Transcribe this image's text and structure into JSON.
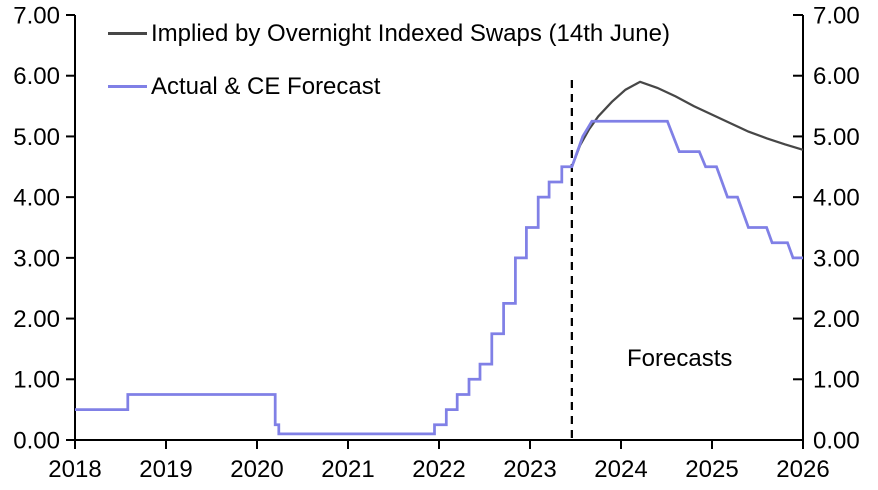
{
  "chart_data": {
    "type": "line",
    "title": "",
    "xlabel": "",
    "ylabel": "",
    "x_axis": {
      "range": [
        2018,
        2026
      ],
      "ticks": [
        2018,
        2019,
        2020,
        2021,
        2022,
        2023,
        2024,
        2025,
        2026
      ],
      "tick_labels": [
        "2018",
        "2019",
        "2020",
        "2021",
        "2022",
        "2023",
        "2024",
        "2025",
        "2026"
      ]
    },
    "y_axis": {
      "range": [
        0,
        7
      ],
      "ticks": [
        0,
        1,
        2,
        3,
        4,
        5,
        6,
        7
      ],
      "tick_labels": [
        "0.00",
        "1.00",
        "2.00",
        "3.00",
        "4.00",
        "5.00",
        "6.00",
        "7.00"
      ],
      "dual_axis": true,
      "grid": false
    },
    "annotations": {
      "forecast_label": "Forecasts",
      "forecast_divider_x": 2023.46,
      "forecast_divider_style": "dashed-black"
    },
    "series": [
      {
        "id": "ois-implied",
        "name": "Implied by Overnight Indexed Swaps (14th June)",
        "color": "#474747",
        "stroke_width": 2.25,
        "points": [
          [
            2023.46,
            4.5
          ],
          [
            2023.55,
            4.85
          ],
          [
            2023.65,
            5.12
          ],
          [
            2023.75,
            5.33
          ],
          [
            2023.9,
            5.57
          ],
          [
            2024.05,
            5.77
          ],
          [
            2024.21,
            5.9
          ],
          [
            2024.4,
            5.8
          ],
          [
            2024.6,
            5.66
          ],
          [
            2024.8,
            5.5
          ],
          [
            2025.0,
            5.36
          ],
          [
            2025.2,
            5.22
          ],
          [
            2025.4,
            5.08
          ],
          [
            2025.6,
            4.97
          ],
          [
            2025.8,
            4.87
          ],
          [
            2026.0,
            4.78
          ]
        ]
      },
      {
        "id": "actual-ce-forecast",
        "name": "Actual & CE Forecast",
        "color": "#8080e6",
        "stroke_width": 2.75,
        "points": [
          [
            2018.0,
            0.5
          ],
          [
            2018.58,
            0.5
          ],
          [
            2018.58,
            0.75
          ],
          [
            2020.2,
            0.75
          ],
          [
            2020.2,
            0.25
          ],
          [
            2020.24,
            0.25
          ],
          [
            2020.24,
            0.1
          ],
          [
            2021.95,
            0.1
          ],
          [
            2021.95,
            0.25
          ],
          [
            2022.08,
            0.25
          ],
          [
            2022.08,
            0.5
          ],
          [
            2022.2,
            0.5
          ],
          [
            2022.2,
            0.75
          ],
          [
            2022.33,
            0.75
          ],
          [
            2022.33,
            1.0
          ],
          [
            2022.45,
            1.0
          ],
          [
            2022.45,
            1.25
          ],
          [
            2022.58,
            1.25
          ],
          [
            2022.58,
            1.75
          ],
          [
            2022.71,
            1.75
          ],
          [
            2022.71,
            2.25
          ],
          [
            2022.84,
            2.25
          ],
          [
            2022.84,
            3.0
          ],
          [
            2022.96,
            3.0
          ],
          [
            2022.96,
            3.5
          ],
          [
            2023.09,
            3.5
          ],
          [
            2023.09,
            4.0
          ],
          [
            2023.21,
            4.0
          ],
          [
            2023.21,
            4.25
          ],
          [
            2023.35,
            4.25
          ],
          [
            2023.35,
            4.5
          ],
          [
            2023.46,
            4.5
          ],
          [
            2023.58,
            5.0
          ],
          [
            2023.68,
            5.25
          ],
          [
            2024.51,
            5.25
          ],
          [
            2024.64,
            4.75
          ],
          [
            2024.86,
            4.75
          ],
          [
            2024.93,
            4.5
          ],
          [
            2025.05,
            4.5
          ],
          [
            2025.17,
            4.0
          ],
          [
            2025.28,
            4.0
          ],
          [
            2025.4,
            3.5
          ],
          [
            2025.6,
            3.5
          ],
          [
            2025.66,
            3.25
          ],
          [
            2025.83,
            3.25
          ],
          [
            2025.89,
            3.0
          ],
          [
            2026.0,
            3.0
          ]
        ]
      }
    ]
  }
}
